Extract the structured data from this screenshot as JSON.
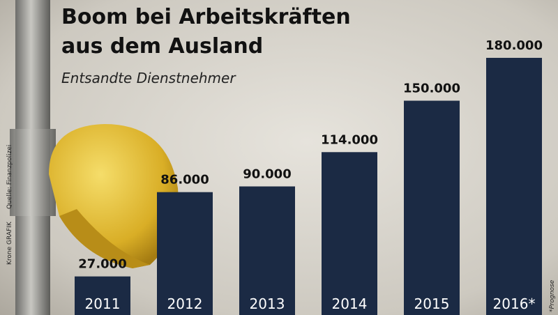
{
  "chart_data": {
    "type": "bar",
    "title": "Boom bei Arbeitskräften aus dem Ausland",
    "subtitle": "Entsandte Dienstnehmer",
    "categories": [
      "2011",
      "2012",
      "2013",
      "2014",
      "2015",
      "2016*"
    ],
    "values": [
      27000,
      86000,
      90000,
      114000,
      150000,
      180000
    ],
    "value_labels": [
      "27.000",
      "86.000",
      "90.000",
      "114.000",
      "150.000",
      "180.000"
    ],
    "color": "#1b2a44",
    "source": "Quelle: Finanzpolizei",
    "credit": "Krone GRAFIK",
    "note": "*Prognose"
  }
}
